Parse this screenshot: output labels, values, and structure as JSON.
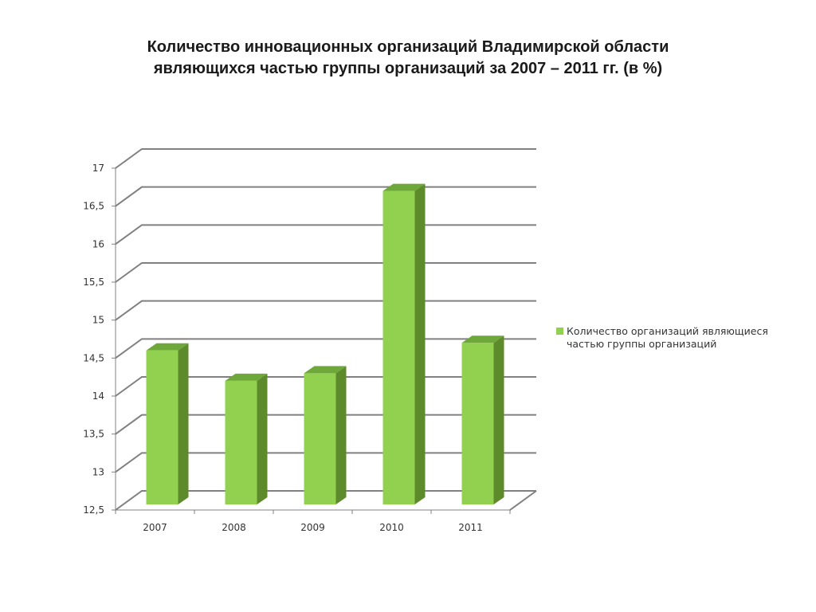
{
  "chart_data": {
    "type": "bar",
    "title_lines": [
      "Количество инновационных организаций Владимирской области",
      "являющихся частью группы организаций за 2007 – 2011 гг. (в %)"
    ],
    "categories": [
      "2007",
      "2008",
      "2009",
      "2010",
      "2011"
    ],
    "series": [
      {
        "name": "Количество организаций являющиеся частью группы организаций",
        "name_lines": [
          "Количество организаций являющиеся",
          "частью группы организаций"
        ],
        "values": [
          14.6,
          14.2,
          14.3,
          16.7,
          14.7
        ]
      }
    ],
    "yticks": [
      "12,5",
      "13",
      "13,5",
      "14",
      "14,5",
      "15",
      "15,5",
      "16",
      "16,5",
      "17"
    ],
    "ylim": [
      12.5,
      17
    ],
    "grid": true,
    "legend_position": "right",
    "style_3d": true,
    "colors": {
      "bar_front": "#92d050",
      "bar_side": "#5d8a2a",
      "bar_top": "#6fa83a",
      "grid": "#808080"
    }
  }
}
